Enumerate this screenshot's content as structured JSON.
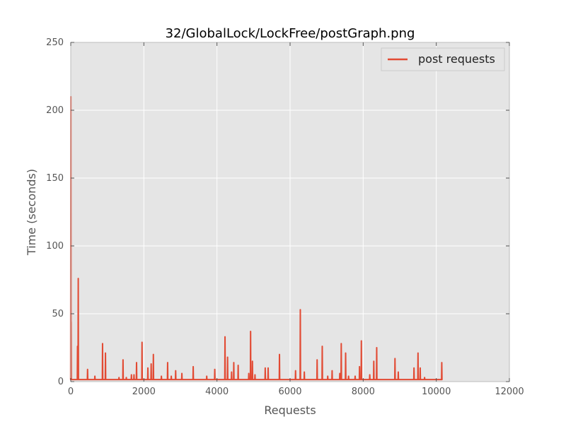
{
  "chart_data": {
    "type": "line",
    "title": "32/GlobalLock/LockFree/postGraph.png",
    "xlabel": "Requests",
    "ylabel": "Time (seconds)",
    "xlim": [
      0,
      12000
    ],
    "ylim": [
      0,
      250
    ],
    "x_ticks": [
      "0",
      "2000",
      "4000",
      "6000",
      "8000",
      "10000",
      "12000"
    ],
    "y_ticks": [
      "0",
      "50",
      "100",
      "150",
      "200",
      "250"
    ],
    "grid": true,
    "legend_position": "top-right",
    "background_color": "#e5e5e5",
    "series": [
      {
        "name": "post requests",
        "color": "#e24a33",
        "baseline": 1.5,
        "x_end": 10150,
        "spikes": [
          [
            3,
            210
          ],
          [
            10,
            44
          ],
          [
            185,
            26
          ],
          [
            205,
            76
          ],
          [
            460,
            9
          ],
          [
            660,
            4
          ],
          [
            870,
            28
          ],
          [
            950,
            21
          ],
          [
            1320,
            3
          ],
          [
            1430,
            16
          ],
          [
            1520,
            3
          ],
          [
            1660,
            5
          ],
          [
            1730,
            5
          ],
          [
            1800,
            14
          ],
          [
            1950,
            29
          ],
          [
            2110,
            10
          ],
          [
            2200,
            13
          ],
          [
            2260,
            20
          ],
          [
            2480,
            4
          ],
          [
            2650,
            14
          ],
          [
            2750,
            4
          ],
          [
            2870,
            8
          ],
          [
            3040,
            6
          ],
          [
            3350,
            11
          ],
          [
            3720,
            4
          ],
          [
            3940,
            9
          ],
          [
            4220,
            33
          ],
          [
            4290,
            18
          ],
          [
            4400,
            7
          ],
          [
            4460,
            14
          ],
          [
            4580,
            12
          ],
          [
            4870,
            6
          ],
          [
            4920,
            37
          ],
          [
            4970,
            15
          ],
          [
            5040,
            5
          ],
          [
            5320,
            10
          ],
          [
            5400,
            10
          ],
          [
            5710,
            20
          ],
          [
            6150,
            8
          ],
          [
            6280,
            53
          ],
          [
            6390,
            7
          ],
          [
            6740,
            16
          ],
          [
            6880,
            26
          ],
          [
            7030,
            4
          ],
          [
            7150,
            8
          ],
          [
            7360,
            6
          ],
          [
            7400,
            28
          ],
          [
            7520,
            21
          ],
          [
            7600,
            4
          ],
          [
            7780,
            4
          ],
          [
            7900,
            11
          ],
          [
            7950,
            30
          ],
          [
            8180,
            5
          ],
          [
            8290,
            15
          ],
          [
            8370,
            25
          ],
          [
            8870,
            17
          ],
          [
            8960,
            7
          ],
          [
            9390,
            10
          ],
          [
            9500,
            21
          ],
          [
            9560,
            10
          ],
          [
            9680,
            3
          ],
          [
            10150,
            14
          ]
        ]
      }
    ]
  }
}
